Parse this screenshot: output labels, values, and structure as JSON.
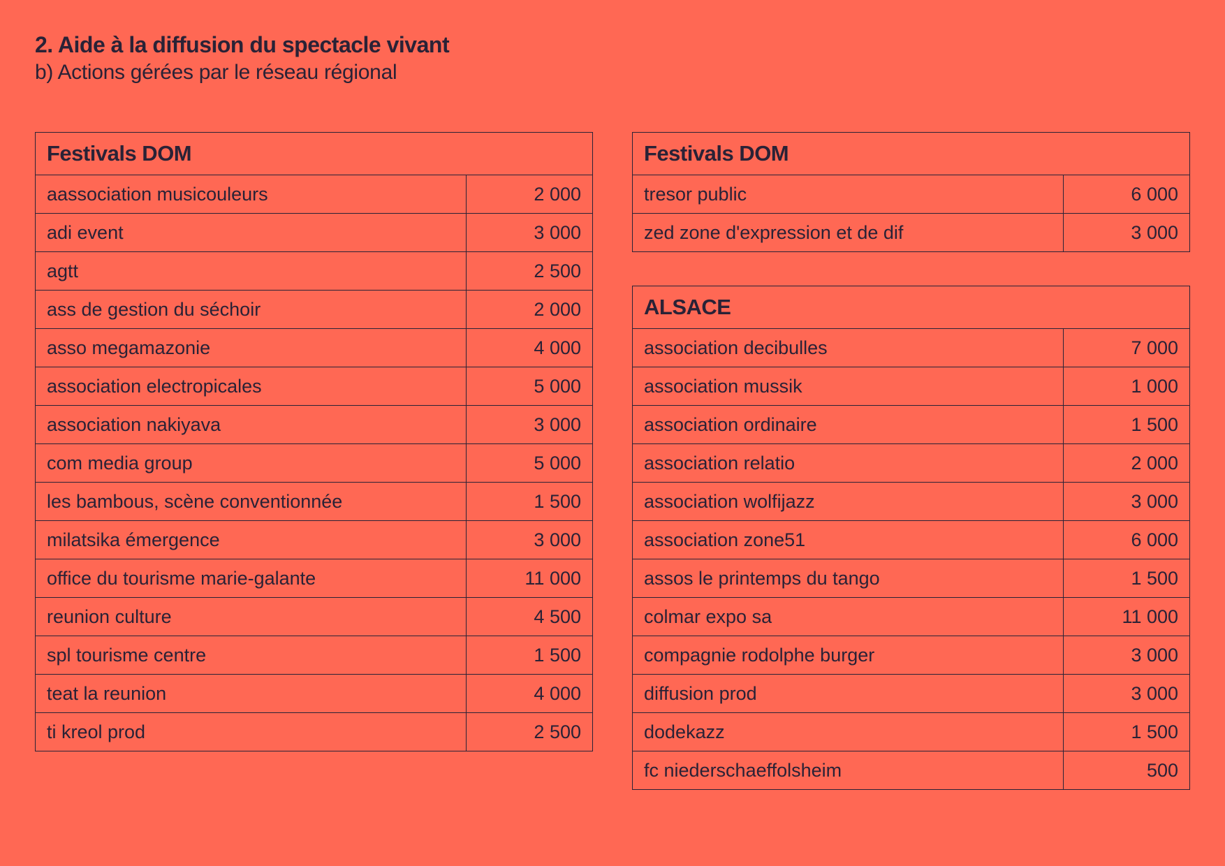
{
  "header": {
    "title": "2. Aide à la diffusion du spectacle vivant",
    "subtitle": "b) Actions gérées par le réseau régional"
  },
  "tables": [
    {
      "heading": "Festivals DOM",
      "rows": [
        {
          "name": "aassociation musicouleurs",
          "amount": "2 000"
        },
        {
          "name": "adi event",
          "amount": "3 000"
        },
        {
          "name": "agtt",
          "amount": "2 500"
        },
        {
          "name": "ass de gestion du séchoir",
          "amount": "2 000"
        },
        {
          "name": "asso megamazonie",
          "amount": "4 000"
        },
        {
          "name": "association electropicales",
          "amount": "5 000"
        },
        {
          "name": "association nakiyava",
          "amount": "3 000"
        },
        {
          "name": "com media group",
          "amount": "5 000"
        },
        {
          "name": "les bambous, scène conventionnée",
          "amount": "1 500"
        },
        {
          "name": "milatsika émergence",
          "amount": "3 000"
        },
        {
          "name": "office du tourisme marie-galante",
          "amount": "11 000"
        },
        {
          "name": "reunion culture",
          "amount": "4 500"
        },
        {
          "name": "spl tourisme centre",
          "amount": "1 500"
        },
        {
          "name": "teat la reunion",
          "amount": "4 000"
        },
        {
          "name": "ti kreol prod",
          "amount": "2 500"
        }
      ]
    },
    {
      "heading": "Festivals DOM",
      "rows": [
        {
          "name": "tresor public",
          "amount": "6 000"
        },
        {
          "name": "zed zone d'expression et de dif",
          "amount": "3 000"
        }
      ]
    },
    {
      "heading": "ALSACE",
      "rows": [
        {
          "name": "association decibulles",
          "amount": "7 000"
        },
        {
          "name": "association mussik",
          "amount": "1 000"
        },
        {
          "name": "association ordinaire",
          "amount": "1 500"
        },
        {
          "name": "association relatio",
          "amount": "2 000"
        },
        {
          "name": "association wolfijazz",
          "amount": "3 000"
        },
        {
          "name": "association zone51",
          "amount": "6 000"
        },
        {
          "name": "assos le printemps du tango",
          "amount": "1 500"
        },
        {
          "name": "colmar expo sa",
          "amount": "11 000"
        },
        {
          "name": "compagnie rodolphe burger",
          "amount": "3 000"
        },
        {
          "name": "diffusion prod",
          "amount": "3 000"
        },
        {
          "name": "dodekazz",
          "amount": "1 500"
        },
        {
          "name": "fc niederschaeffolsheim",
          "amount": "500"
        }
      ]
    }
  ]
}
